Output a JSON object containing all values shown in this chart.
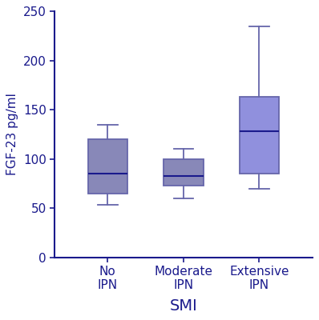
{
  "categories": [
    "No\nIPN",
    "Moderate\nIPN",
    "Extensive\nIPN"
  ],
  "xlabel": "SMI",
  "ylabel": "FGF-23 pg/ml",
  "ylim": [
    0,
    250
  ],
  "yticks": [
    0,
    50,
    100,
    150,
    200,
    250
  ],
  "boxes": [
    {
      "whislo": 53,
      "q1": 65,
      "med": 85,
      "q3": 120,
      "whishi": 135
    },
    {
      "whislo": 60,
      "q1": 73,
      "med": 83,
      "q3": 100,
      "whishi": 110
    },
    {
      "whislo": 70,
      "q1": 85,
      "med": 128,
      "q3": 163,
      "whishi": 235
    }
  ],
  "fill_colors": [
    "#8888b8",
    "#8888b8",
    "#9090dd"
  ],
  "edge_color": "#6666aa",
  "median_color": "#1a1a8c",
  "line_color": "#1a1a8c",
  "background_color": "#ffffff",
  "xlabel_fontsize": 14,
  "ylabel_fontsize": 11,
  "tick_fontsize": 11,
  "box_width": 0.52
}
